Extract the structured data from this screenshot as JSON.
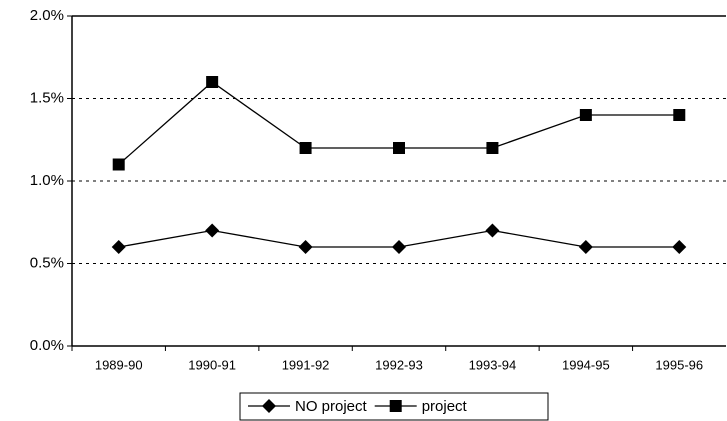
{
  "chart_data": {
    "type": "line",
    "categories": [
      "1989-90",
      "1990-91",
      "1991-92",
      "1992-93",
      "1993-94",
      "1994-95",
      "1995-96"
    ],
    "series": [
      {
        "name": "NO project",
        "color": "#000000",
        "marker": "diamond",
        "values": [
          0.6,
          0.7,
          0.6,
          0.6,
          0.7,
          0.6,
          0.6
        ]
      },
      {
        "name": "project",
        "color": "#000000",
        "marker": "square",
        "values": [
          1.1,
          1.6,
          1.2,
          1.2,
          1.2,
          1.4,
          1.4
        ]
      }
    ],
    "ylim": [
      0,
      2
    ],
    "yticks": [
      {
        "value": 0,
        "label": "0.0%"
      },
      {
        "value": 0.5,
        "label": "0.5%"
      },
      {
        "value": 1,
        "label": "1.0%"
      },
      {
        "value": 1.5,
        "label": "1.5%"
      },
      {
        "value": 2,
        "label": "2.0%"
      }
    ],
    "grid": true,
    "legend": "bottom"
  }
}
